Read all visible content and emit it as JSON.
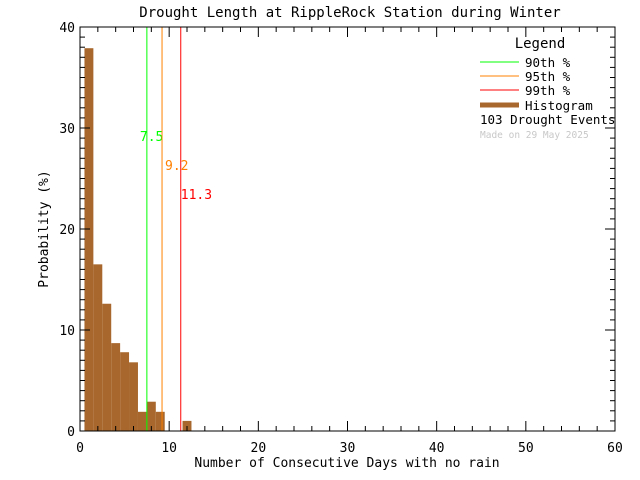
{
  "chart_data": {
    "type": "bar",
    "title": "Drought Length at RippleRock Station during Winter",
    "xlabel": "Number of Consecutive Days with no rain",
    "ylabel": "Probability (%)",
    "xlim": [
      0,
      60
    ],
    "ylim": [
      0,
      40
    ],
    "xticks": [
      0,
      10,
      20,
      30,
      40,
      50,
      60
    ],
    "yticks": [
      0,
      10,
      20,
      30,
      40
    ],
    "bins": [
      1,
      2,
      3,
      4,
      5,
      6,
      7,
      8,
      9,
      10,
      11,
      12
    ],
    "values": [
      37.9,
      16.5,
      12.6,
      8.7,
      7.8,
      6.8,
      1.9,
      2.9,
      1.9,
      0,
      0,
      1.0
    ],
    "bar_color": "#a8672c",
    "percentiles": [
      {
        "label": "90th %",
        "value": 7.5,
        "text": "7.5",
        "color": "#00ff00"
      },
      {
        "label": "95th %",
        "value": 9.2,
        "text": "9.2",
        "color": "#ff8000"
      },
      {
        "label": "99th %",
        "value": 11.3,
        "text": "11.3",
        "color": "#ff0000"
      }
    ],
    "legend": {
      "title": "Legend",
      "placement": "top-right",
      "histogram_label": "Histogram",
      "events": "103 Drought Events",
      "made_on": "Made on 29 May 2025"
    }
  }
}
